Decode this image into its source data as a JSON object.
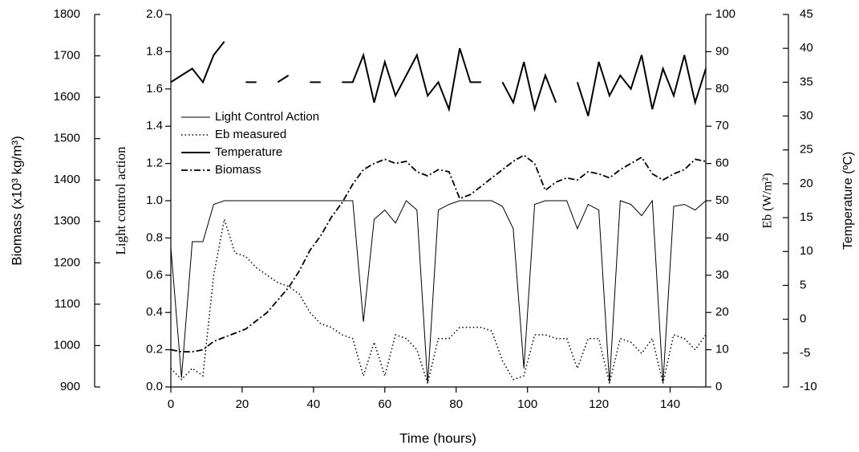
{
  "chart_data": {
    "type": "line",
    "xlabel": "Time (hours)",
    "ylabel": "Light control action",
    "y2label": "Eb (W/m²)",
    "y3label": "Temperature (ºC)",
    "y4label": "Biomass (x10³ kg/m³)",
    "x": [
      0,
      3,
      6,
      9,
      12,
      15,
      18,
      21,
      24,
      27,
      30,
      33,
      36,
      39,
      42,
      45,
      48,
      51,
      54,
      57,
      60,
      63,
      66,
      69,
      72,
      75,
      78,
      81,
      84,
      87,
      90,
      93,
      96,
      99,
      102,
      105,
      108,
      111,
      114,
      117,
      120,
      123,
      126,
      129,
      132,
      135,
      138,
      141,
      144,
      147,
      150
    ],
    "xlim": [
      0,
      150
    ],
    "xticks": [
      0,
      20,
      40,
      60,
      80,
      100,
      120,
      140
    ],
    "ylim": [
      0,
      2
    ],
    "yticks": [
      {
        "value": 0,
        "label": "0.0"
      },
      0.2,
      0.4,
      0.6,
      0.8,
      {
        "value": 1,
        "label": "1.0"
      },
      1.2,
      1.4,
      1.6,
      1.8,
      {
        "value": 2,
        "label": "2.0"
      }
    ],
    "y2lim": [
      0,
      100
    ],
    "y2ticks": [
      0,
      10,
      20,
      30,
      40,
      50,
      60,
      70,
      80,
      90,
      100
    ],
    "y3lim": [
      -10,
      45
    ],
    "y3ticks": [
      -10,
      -5,
      0,
      5,
      10,
      15,
      20,
      25,
      30,
      35,
      40,
      45
    ],
    "y4lim": [
      900,
      1800
    ],
    "y4ticks": [
      900,
      1000,
      1100,
      1200,
      1300,
      1400,
      1500,
      1600,
      1700,
      1800
    ],
    "series": [
      {
        "name": "Light Control Action",
        "color": "#000000",
        "axis": "y",
        "dash": "solid-thin",
        "values": [
          0.75,
          0.05,
          0.78,
          0.78,
          0.98,
          1.0,
          1.0,
          1.0,
          1.0,
          1.0,
          1.0,
          1.0,
          1.0,
          1.0,
          1.0,
          1.0,
          1.0,
          1.0,
          0.35,
          0.9,
          0.95,
          0.88,
          1.0,
          0.95,
          0.02,
          0.95,
          0.98,
          1.0,
          1.0,
          1.0,
          1.0,
          0.97,
          0.85,
          0.1,
          0.98,
          1.0,
          1.0,
          1.0,
          0.85,
          0.98,
          0.95,
          0.02,
          1.0,
          0.98,
          0.92,
          1.0,
          0.02,
          0.97,
          0.98,
          0.95,
          1.0
        ]
      },
      {
        "name": "Eb measured",
        "color": "#000000",
        "axis": "y2",
        "dash": "dotted",
        "values": [
          5,
          2,
          5,
          3,
          30,
          45,
          36,
          35,
          32,
          30,
          28,
          27,
          25,
          20,
          17,
          16,
          14,
          13,
          3,
          12,
          3,
          14,
          13,
          10,
          1,
          13,
          13,
          16,
          16,
          16,
          15,
          7,
          2,
          3,
          14,
          14,
          13,
          13,
          5,
          13,
          13,
          1,
          13,
          12,
          9,
          13,
          1,
          14,
          13,
          10,
          14
        ]
      },
      {
        "name": "Temperature",
        "color": "#000000",
        "axis": "y3",
        "dash": "solid-thick",
        "values": [
          35,
          36,
          37,
          35,
          39,
          41,
          null,
          35,
          35,
          null,
          35,
          36,
          null,
          35,
          35,
          null,
          35,
          35,
          39,
          32,
          38,
          33,
          36,
          39,
          33,
          35,
          31,
          40,
          35,
          35,
          null,
          35,
          32,
          38,
          31,
          36,
          32,
          null,
          35,
          30,
          38,
          33,
          36,
          34,
          39,
          31,
          37,
          33,
          39,
          32,
          37
        ]
      },
      {
        "name": "Biomass",
        "color": "#000000",
        "axis": "y4",
        "dash": "dash-dot",
        "values": [
          990,
          985,
          985,
          990,
          1010,
          1020,
          1030,
          1040,
          1060,
          1080,
          1110,
          1140,
          1180,
          1230,
          1265,
          1310,
          1345,
          1390,
          1425,
          1440,
          1450,
          1440,
          1445,
          1420,
          1410,
          1425,
          1420,
          1355,
          1365,
          1385,
          1405,
          1425,
          1445,
          1460,
          1440,
          1375,
          1395,
          1405,
          1400,
          1420,
          1415,
          1405,
          1425,
          1440,
          1455,
          1415,
          1400,
          1415,
          1425,
          1450,
          1445
        ]
      }
    ]
  }
}
